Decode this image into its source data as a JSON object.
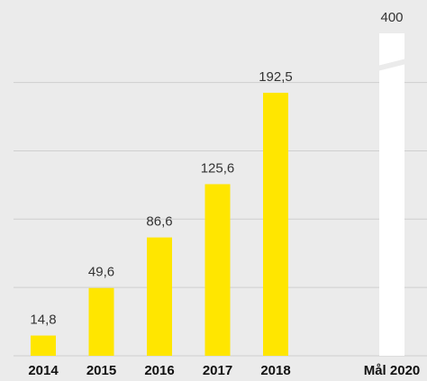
{
  "chart_data": {
    "type": "bar",
    "categories": [
      "2014",
      "2015",
      "2016",
      "2017",
      "2018",
      null,
      "Mål 2020"
    ],
    "values": [
      14.8,
      49.6,
      86.6,
      125.6,
      192.5,
      null,
      400
    ],
    "value_labels": [
      "14,8",
      "49,6",
      "86,6",
      "125,6",
      "192,5",
      null,
      "400"
    ],
    "colors": [
      "#ffe600",
      "#ffe600",
      "#ffe600",
      "#ffe600",
      "#ffe600",
      null,
      "#ffffff"
    ],
    "ylim": [
      0,
      236
    ],
    "yticks": [
      0,
      50,
      100,
      150,
      200
    ],
    "grid": true
  }
}
